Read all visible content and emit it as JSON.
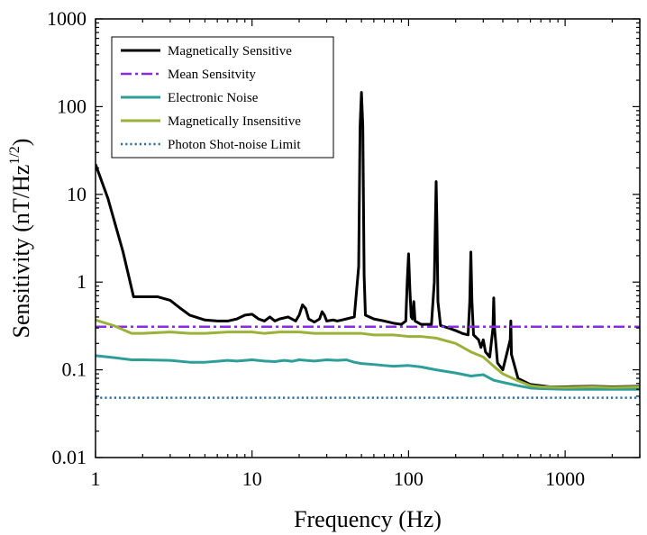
{
  "chart_data": {
    "type": "line",
    "title": "",
    "xlabel": "Frequency (Hz)",
    "ylabel_main": "Sensitivity (nT/Hz",
    "ylabel_sup": "1/2",
    "ylabel_close": ")",
    "xscale": "log",
    "yscale": "log",
    "xlim": [
      1,
      3000
    ],
    "ylim": [
      0.01,
      1000
    ],
    "xticks": [
      {
        "value": 1,
        "label": "1"
      },
      {
        "value": 10,
        "label": "10"
      },
      {
        "value": 100,
        "label": "100"
      },
      {
        "value": 1000,
        "label": "1000"
      }
    ],
    "yticks": [
      {
        "value": 0.01,
        "label": "0.01"
      },
      {
        "value": 0.1,
        "label": "0.1"
      },
      {
        "value": 1,
        "label": "1"
      },
      {
        "value": 10,
        "label": "10"
      },
      {
        "value": 100,
        "label": "100"
      },
      {
        "value": 1000,
        "label": "1000"
      }
    ],
    "grid": false,
    "legend_position": "top-left",
    "series": [
      {
        "name": "Magnetically Sensitive",
        "color": "#000000",
        "style": "solid",
        "points": [
          [
            1,
            22
          ],
          [
            1.2,
            9
          ],
          [
            1.5,
            2.2
          ],
          [
            1.75,
            0.68
          ],
          [
            2,
            0.68
          ],
          [
            2.5,
            0.68
          ],
          [
            3,
            0.62
          ],
          [
            3.5,
            0.5
          ],
          [
            4,
            0.42
          ],
          [
            5,
            0.37
          ],
          [
            6,
            0.36
          ],
          [
            7,
            0.36
          ],
          [
            8,
            0.38
          ],
          [
            9,
            0.42
          ],
          [
            10,
            0.43
          ],
          [
            11,
            0.38
          ],
          [
            12,
            0.36
          ],
          [
            13,
            0.4
          ],
          [
            14,
            0.36
          ],
          [
            15,
            0.38
          ],
          [
            17,
            0.4
          ],
          [
            19,
            0.36
          ],
          [
            20,
            0.42
          ],
          [
            21,
            0.55
          ],
          [
            22,
            0.5
          ],
          [
            23,
            0.38
          ],
          [
            25,
            0.35
          ],
          [
            27,
            0.38
          ],
          [
            28,
            0.46
          ],
          [
            29,
            0.42
          ],
          [
            30,
            0.36
          ],
          [
            33,
            0.37
          ],
          [
            35,
            0.36
          ],
          [
            40,
            0.38
          ],
          [
            45,
            0.4
          ],
          [
            48,
            1.5
          ],
          [
            49,
            60
          ],
          [
            50,
            145
          ],
          [
            51,
            60
          ],
          [
            52,
            1.2
          ],
          [
            53,
            0.42
          ],
          [
            60,
            0.38
          ],
          [
            70,
            0.36
          ],
          [
            80,
            0.34
          ],
          [
            90,
            0.33
          ],
          [
            96,
            0.36
          ],
          [
            98,
            1.0
          ],
          [
            100,
            2.1
          ],
          [
            102,
            0.8
          ],
          [
            104,
            0.4
          ],
          [
            106,
            0.38
          ],
          [
            108,
            0.6
          ],
          [
            110,
            0.36
          ],
          [
            120,
            0.33
          ],
          [
            140,
            0.33
          ],
          [
            146,
            1.0
          ],
          [
            148,
            4
          ],
          [
            150,
            14
          ],
          [
            152,
            4
          ],
          [
            154,
            0.6
          ],
          [
            160,
            0.32
          ],
          [
            180,
            0.3
          ],
          [
            200,
            0.28
          ],
          [
            220,
            0.26
          ],
          [
            240,
            0.25
          ],
          [
            246,
            0.6
          ],
          [
            250,
            2.2
          ],
          [
            254,
            0.6
          ],
          [
            260,
            0.25
          ],
          [
            280,
            0.22
          ],
          [
            290,
            0.18
          ],
          [
            300,
            0.22
          ],
          [
            310,
            0.16
          ],
          [
            330,
            0.14
          ],
          [
            346,
            0.3
          ],
          [
            350,
            0.66
          ],
          [
            354,
            0.3
          ],
          [
            370,
            0.12
          ],
          [
            400,
            0.1
          ],
          [
            446,
            0.22
          ],
          [
            450,
            0.36
          ],
          [
            454,
            0.15
          ],
          [
            500,
            0.08
          ],
          [
            600,
            0.068
          ],
          [
            800,
            0.064
          ],
          [
            1000,
            0.064
          ],
          [
            1500,
            0.065
          ],
          [
            2000,
            0.064
          ],
          [
            3000,
            0.065
          ]
        ]
      },
      {
        "name": "Mean Sensitvity",
        "color": "#8A2BE2",
        "style": "dashdot",
        "points": [
          [
            1,
            0.31
          ],
          [
            3000,
            0.31
          ]
        ]
      },
      {
        "name": "Electronic Noise",
        "color": "#2E9E9A",
        "style": "solid",
        "points": [
          [
            1,
            0.145
          ],
          [
            1.3,
            0.138
          ],
          [
            1.7,
            0.13
          ],
          [
            2,
            0.13
          ],
          [
            3,
            0.128
          ],
          [
            4,
            0.122
          ],
          [
            5,
            0.122
          ],
          [
            6,
            0.125
          ],
          [
            7,
            0.128
          ],
          [
            8,
            0.126
          ],
          [
            10,
            0.13
          ],
          [
            12,
            0.126
          ],
          [
            14,
            0.124
          ],
          [
            16,
            0.128
          ],
          [
            18,
            0.125
          ],
          [
            20,
            0.13
          ],
          [
            25,
            0.126
          ],
          [
            30,
            0.13
          ],
          [
            35,
            0.128
          ],
          [
            40,
            0.13
          ],
          [
            45,
            0.122
          ],
          [
            50,
            0.118
          ],
          [
            60,
            0.115
          ],
          [
            70,
            0.112
          ],
          [
            80,
            0.11
          ],
          [
            100,
            0.112
          ],
          [
            120,
            0.108
          ],
          [
            150,
            0.1
          ],
          [
            200,
            0.092
          ],
          [
            250,
            0.085
          ],
          [
            300,
            0.088
          ],
          [
            350,
            0.076
          ],
          [
            400,
            0.072
          ],
          [
            500,
            0.066
          ],
          [
            600,
            0.062
          ],
          [
            700,
            0.061
          ],
          [
            1000,
            0.06
          ],
          [
            2000,
            0.06
          ],
          [
            3000,
            0.06
          ]
        ]
      },
      {
        "name": "Magnetically Insensitive",
        "color": "#9BB13A",
        "style": "solid",
        "points": [
          [
            1,
            0.37
          ],
          [
            1.3,
            0.32
          ],
          [
            1.7,
            0.26
          ],
          [
            2,
            0.26
          ],
          [
            3,
            0.27
          ],
          [
            4,
            0.26
          ],
          [
            5,
            0.26
          ],
          [
            7,
            0.27
          ],
          [
            10,
            0.27
          ],
          [
            12,
            0.26
          ],
          [
            15,
            0.27
          ],
          [
            20,
            0.27
          ],
          [
            25,
            0.26
          ],
          [
            30,
            0.26
          ],
          [
            40,
            0.26
          ],
          [
            50,
            0.26
          ],
          [
            60,
            0.25
          ],
          [
            80,
            0.25
          ],
          [
            100,
            0.24
          ],
          [
            120,
            0.24
          ],
          [
            150,
            0.23
          ],
          [
            200,
            0.2
          ],
          [
            250,
            0.16
          ],
          [
            300,
            0.14
          ],
          [
            350,
            0.11
          ],
          [
            400,
            0.09
          ],
          [
            500,
            0.075
          ],
          [
            600,
            0.066
          ],
          [
            700,
            0.064
          ],
          [
            1000,
            0.063
          ],
          [
            1500,
            0.064
          ],
          [
            2000,
            0.063
          ],
          [
            3000,
            0.064
          ]
        ]
      },
      {
        "name": "Photon Shot-noise Limit",
        "color": "#2F6FA3",
        "style": "dotted",
        "points": [
          [
            1,
            0.048
          ],
          [
            3000,
            0.048
          ]
        ]
      }
    ]
  }
}
